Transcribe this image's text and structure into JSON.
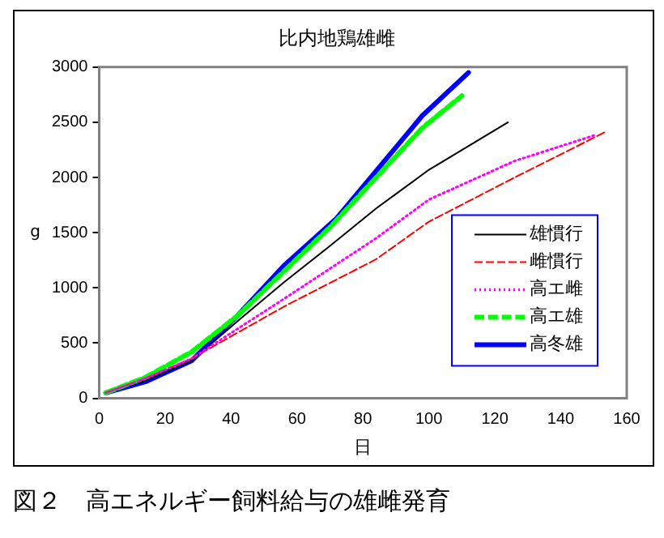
{
  "chart_data": {
    "type": "line",
    "title": "比内地鶏雄雌",
    "xlabel": "日",
    "ylabel": "g",
    "annotations": [
      "図２　高エネルギー飼料給与の雄雌発育"
    ],
    "xlim": [
      0,
      160
    ],
    "xticks": [
      0,
      20,
      40,
      60,
      80,
      100,
      120,
      140,
      160
    ],
    "ylim": [
      0,
      3000
    ],
    "yticks": [
      0,
      500,
      1000,
      1500,
      2000,
      2500,
      3000
    ],
    "grid": false,
    "legend": "bottom right",
    "marker": "none",
    "series": [
      {
        "name": "雄慣行",
        "color": "#000000",
        "line_style": "solid",
        "x": [
          2,
          14,
          28,
          42,
          56,
          70,
          84,
          100,
          124
        ],
        "values": [
          50,
          160,
          340,
          700,
          1050,
          1380,
          1720,
          2070,
          2500
        ]
      },
      {
        "name": "雌慣行",
        "color": "#ff0000",
        "line_style": "dashed",
        "x": [
          2,
          14,
          28,
          56,
          84,
          100,
          126,
          154
        ],
        "values": [
          50,
          180,
          360,
          830,
          1260,
          1600,
          2000,
          2420
        ]
      },
      {
        "name": "高エ雌",
        "color": "#ff00ff",
        "line_style": "dotted",
        "x": [
          2,
          14,
          28,
          56,
          84,
          100,
          126,
          150
        ],
        "values": [
          50,
          180,
          360,
          900,
          1450,
          1800,
          2150,
          2380
        ]
      },
      {
        "name": "高エ雄",
        "color": "#00ff00",
        "line_style": "dashed",
        "x": [
          2,
          14,
          28,
          42,
          56,
          70,
          84,
          98,
          110
        ],
        "values": [
          50,
          190,
          420,
          750,
          1150,
          1550,
          2000,
          2450,
          2740
        ]
      },
      {
        "name": "高冬雄",
        "color": "#0000ff",
        "line_style": "solid",
        "x": [
          2,
          14,
          28,
          42,
          56,
          72,
          98,
          112
        ],
        "values": [
          50,
          150,
          340,
          750,
          1200,
          1630,
          2560,
          2950
        ]
      }
    ]
  }
}
